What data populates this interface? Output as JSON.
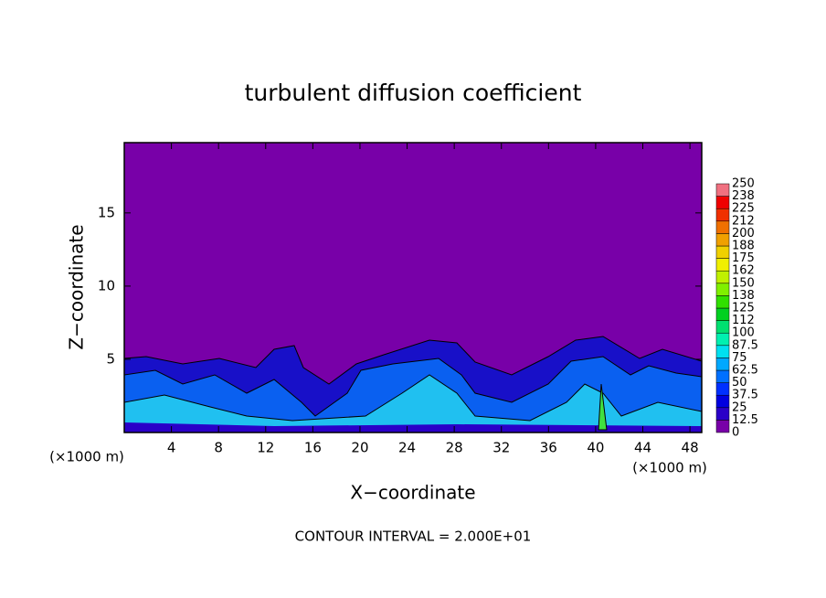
{
  "chart_data": {
    "type": "contour",
    "title": "turbulent diffusion coefficient",
    "xlabel": "X−coordinate",
    "ylabel": "Z−coordinate",
    "xunit": "(×1000 m)",
    "annotation": "CONTOUR INTERVAL = 2.000E+01",
    "xlim": [
      0,
      49
    ],
    "xticks": [
      4,
      8,
      12,
      16,
      20,
      24,
      28,
      32,
      36,
      40,
      44,
      48
    ],
    "ylim": [
      0,
      19.8
    ],
    "yticks": [
      5,
      10,
      15
    ],
    "background_color": "#7800a8",
    "colorbar": {
      "levels": [
        0,
        12.5,
        25,
        37.5,
        50,
        62.5,
        75,
        87.5,
        100,
        {
          "value": 112.5,
          "label": "112"
        },
        125,
        {
          "value": 137.5,
          "label": "138"
        },
        150,
        {
          "value": 162.5,
          "label": "162"
        },
        175,
        {
          "value": 187.5,
          "label": "188"
        },
        200,
        {
          "value": 212.5,
          "label": "212"
        },
        225,
        {
          "value": 237.5,
          "label": "238"
        },
        250
      ],
      "colors": [
        "#7800a8",
        "#2a00c8",
        "#0000e0",
        "#0030ff",
        "#0070ff",
        "#00a8ff",
        "#00e0f0",
        "#00f0b0",
        "#00e070",
        "#00d020",
        "#30e000",
        "#80f000",
        "#c0f000",
        "#f0f000",
        "#f0d000",
        "#f0a000",
        "#f07000",
        "#f03000",
        "#f00000",
        "#f07080"
      ]
    }
  }
}
